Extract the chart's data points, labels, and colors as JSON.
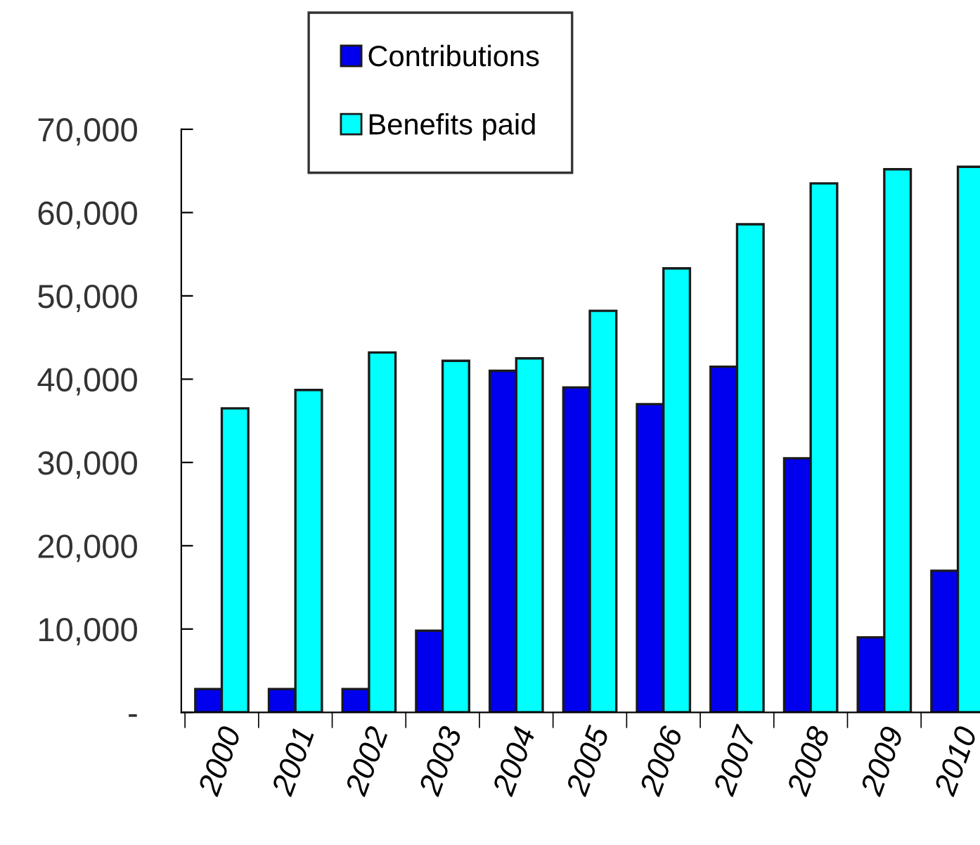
{
  "chart_data": {
    "type": "bar",
    "categories": [
      "2000",
      "2001",
      "2002",
      "2003",
      "2004",
      "2005",
      "2006",
      "2007",
      "2008",
      "2009",
      "2010"
    ],
    "series": [
      {
        "name": "Contributions",
        "color": "#0000ee",
        "values": [
          2800,
          2800,
          2800,
          9800,
          41000,
          39000,
          37000,
          41500,
          30500,
          9000,
          17000
        ]
      },
      {
        "name": "Benefits paid",
        "color": "#00ffff",
        "values": [
          36500,
          38700,
          43200,
          42200,
          42500,
          48200,
          53300,
          58600,
          63500,
          65200,
          65500
        ]
      }
    ],
    "ylim": [
      0,
      70000
    ],
    "yticks": [
      {
        "value": 0,
        "label": "-"
      },
      {
        "value": 10000,
        "label": "10,000"
      },
      {
        "value": 20000,
        "label": "20,000"
      },
      {
        "value": 30000,
        "label": "30,000"
      },
      {
        "value": 40000,
        "label": "40,000"
      },
      {
        "value": 50000,
        "label": "50,000"
      },
      {
        "value": 60000,
        "label": "60,000"
      },
      {
        "value": 70000,
        "label": "70,000"
      }
    ],
    "grid": false,
    "legend": "top"
  }
}
